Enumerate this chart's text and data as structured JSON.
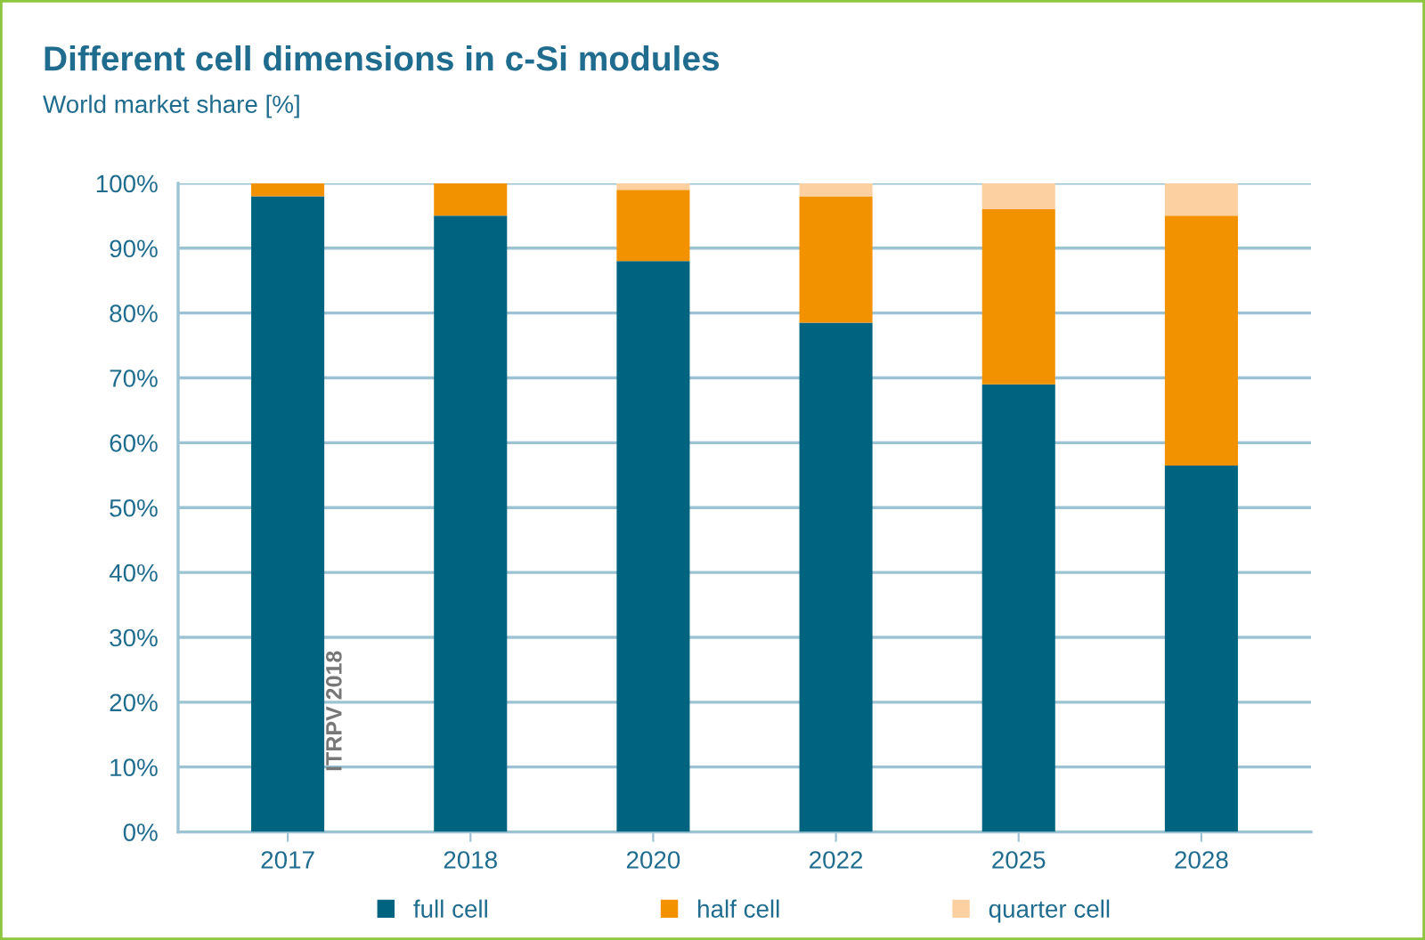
{
  "chart_data": {
    "type": "bar",
    "stacked": true,
    "title": "Different cell dimensions in c-Si modules",
    "subtitle": "World market share [%]",
    "categories": [
      "2017",
      "2018",
      "2020",
      "2022",
      "2025",
      "2028"
    ],
    "series": [
      {
        "name": "full cell",
        "color": "#006480",
        "values": [
          98,
          95,
          88,
          78.5,
          69,
          56.5
        ]
      },
      {
        "name": "half cell",
        "color": "#f39200",
        "values": [
          2,
          5,
          11,
          19.5,
          27,
          38.5
        ]
      },
      {
        "name": "quarter cell",
        "color": "#fdd0a2",
        "values": [
          0,
          0,
          1,
          2,
          4,
          5
        ]
      }
    ],
    "ylim": [
      0,
      100
    ],
    "yticks": [
      {
        "value": 0,
        "label": "0%"
      },
      {
        "value": 10,
        "label": "10%"
      },
      {
        "value": 20,
        "label": "20%"
      },
      {
        "value": 30,
        "label": "30%"
      },
      {
        "value": 40,
        "label": "40%"
      },
      {
        "value": 50,
        "label": "50%"
      },
      {
        "value": 60,
        "label": "60%"
      },
      {
        "value": 70,
        "label": "70%"
      },
      {
        "value": 80,
        "label": "80%"
      },
      {
        "value": 90,
        "label": "90%"
      },
      {
        "value": 100,
        "label": "100%"
      }
    ],
    "grid": "y",
    "legend": "bottom",
    "annotations": [
      "ITRPV 2018"
    ]
  }
}
